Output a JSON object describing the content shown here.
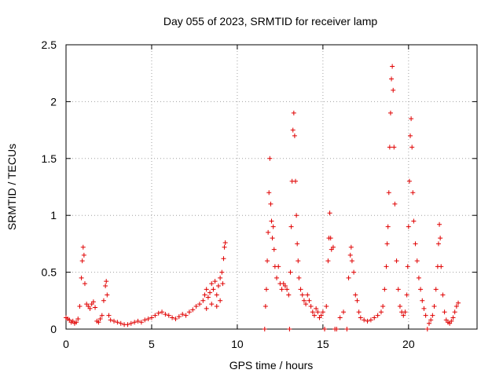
{
  "chart_data": {
    "type": "scatter",
    "title": "Day 055 of 2023, SRMTID for receiver lamp",
    "xlabel": "GPS time / hours",
    "ylabel": "SRMTID / TECUs",
    "xlim": [
      0,
      24
    ],
    "ylim": [
      0,
      2.5
    ],
    "xticks": [
      0,
      5,
      10,
      15,
      20
    ],
    "yticks": [
      0,
      0.5,
      1,
      1.5,
      2,
      2.5
    ],
    "xtick_labels": [
      "0",
      "5",
      "10",
      "15",
      "20"
    ],
    "ytick_labels": [
      "0",
      "0.5",
      "1",
      "1.5",
      "2",
      "2.5"
    ],
    "grid": true,
    "marker": "plus",
    "color": "#e00000",
    "series": [
      {
        "name": "SRMTID",
        "points": [
          [
            0.0,
            0.1
          ],
          [
            0.1,
            0.09
          ],
          [
            0.2,
            0.08
          ],
          [
            0.3,
            0.06
          ],
          [
            0.4,
            0.07
          ],
          [
            0.5,
            0.05
          ],
          [
            0.6,
            0.06
          ],
          [
            0.7,
            0.09
          ],
          [
            0.8,
            0.2
          ],
          [
            0.9,
            0.45
          ],
          [
            0.95,
            0.6
          ],
          [
            1.0,
            0.72
          ],
          [
            1.05,
            0.65
          ],
          [
            1.1,
            0.4
          ],
          [
            1.2,
            0.22
          ],
          [
            1.3,
            0.2
          ],
          [
            1.4,
            0.18
          ],
          [
            1.5,
            0.22
          ],
          [
            1.6,
            0.24
          ],
          [
            1.7,
            0.19
          ],
          [
            1.8,
            0.07
          ],
          [
            1.9,
            0.06
          ],
          [
            2.0,
            0.09
          ],
          [
            2.1,
            0.12
          ],
          [
            2.2,
            0.25
          ],
          [
            2.3,
            0.38
          ],
          [
            2.35,
            0.42
          ],
          [
            2.4,
            0.3
          ],
          [
            2.5,
            0.12
          ],
          [
            2.6,
            0.08
          ],
          [
            2.8,
            0.07
          ],
          [
            3.0,
            0.06
          ],
          [
            3.2,
            0.05
          ],
          [
            3.4,
            0.04
          ],
          [
            3.6,
            0.04
          ],
          [
            3.8,
            0.05
          ],
          [
            4.0,
            0.06
          ],
          [
            4.2,
            0.07
          ],
          [
            4.4,
            0.06
          ],
          [
            4.6,
            0.08
          ],
          [
            4.8,
            0.09
          ],
          [
            5.0,
            0.1
          ],
          [
            5.2,
            0.12
          ],
          [
            5.4,
            0.14
          ],
          [
            5.6,
            0.15
          ],
          [
            5.8,
            0.13
          ],
          [
            6.0,
            0.12
          ],
          [
            6.2,
            0.1
          ],
          [
            6.4,
            0.09
          ],
          [
            6.6,
            0.11
          ],
          [
            6.8,
            0.13
          ],
          [
            7.0,
            0.12
          ],
          [
            7.2,
            0.15
          ],
          [
            7.4,
            0.17
          ],
          [
            7.6,
            0.2
          ],
          [
            7.8,
            0.22
          ],
          [
            8.0,
            0.25
          ],
          [
            8.1,
            0.3
          ],
          [
            8.2,
            0.35
          ],
          [
            8.3,
            0.28
          ],
          [
            8.4,
            0.32
          ],
          [
            8.5,
            0.4
          ],
          [
            8.6,
            0.35
          ],
          [
            8.7,
            0.42
          ],
          [
            8.8,
            0.3
          ],
          [
            8.9,
            0.38
          ],
          [
            9.0,
            0.45
          ],
          [
            9.1,
            0.5
          ],
          [
            9.15,
            0.4
          ],
          [
            9.2,
            0.62
          ],
          [
            9.25,
            0.72
          ],
          [
            9.3,
            0.76
          ],
          [
            8.2,
            0.18
          ],
          [
            8.5,
            0.22
          ],
          [
            8.8,
            0.2
          ],
          [
            9.0,
            0.25
          ],
          [
            11.6,
            0.0
          ],
          [
            11.65,
            0.2
          ],
          [
            11.7,
            0.35
          ],
          [
            11.75,
            0.6
          ],
          [
            11.8,
            0.85
          ],
          [
            11.85,
            1.2
          ],
          [
            11.9,
            1.5
          ],
          [
            11.95,
            1.1
          ],
          [
            12.0,
            0.95
          ],
          [
            12.05,
            0.8
          ],
          [
            12.1,
            0.9
          ],
          [
            12.15,
            0.7
          ],
          [
            12.2,
            0.55
          ],
          [
            12.3,
            0.45
          ],
          [
            12.4,
            0.55
          ],
          [
            12.5,
            0.4
          ],
          [
            12.6,
            0.35
          ],
          [
            12.7,
            0.4
          ],
          [
            12.8,
            0.38
          ],
          [
            12.9,
            0.35
          ],
          [
            13.0,
            0.3
          ],
          [
            13.05,
            0.0
          ],
          [
            13.1,
            0.5
          ],
          [
            13.15,
            0.9
          ],
          [
            13.2,
            1.3
          ],
          [
            13.25,
            1.75
          ],
          [
            13.3,
            1.9
          ],
          [
            13.35,
            1.7
          ],
          [
            13.4,
            1.3
          ],
          [
            13.45,
            1.0
          ],
          [
            13.5,
            0.75
          ],
          [
            13.55,
            0.6
          ],
          [
            13.6,
            0.45
          ],
          [
            13.7,
            0.35
          ],
          [
            13.8,
            0.3
          ],
          [
            13.9,
            0.25
          ],
          [
            14.0,
            0.22
          ],
          [
            14.1,
            0.3
          ],
          [
            14.2,
            0.25
          ],
          [
            14.3,
            0.2
          ],
          [
            14.4,
            0.15
          ],
          [
            14.5,
            0.12
          ],
          [
            14.6,
            0.18
          ],
          [
            14.7,
            0.15
          ],
          [
            14.8,
            0.1
          ],
          [
            14.9,
            0.12
          ],
          [
            15.0,
            0.15
          ],
          [
            15.1,
            0.0
          ],
          [
            15.2,
            0.2
          ],
          [
            15.3,
            0.6
          ],
          [
            15.35,
            0.8
          ],
          [
            15.4,
            1.02
          ],
          [
            15.45,
            0.8
          ],
          [
            15.5,
            0.7
          ],
          [
            15.6,
            0.72
          ],
          [
            15.7,
            0.0
          ],
          [
            15.8,
            0.0
          ],
          [
            16.0,
            0.1
          ],
          [
            16.2,
            0.15
          ],
          [
            16.4,
            0.0
          ],
          [
            16.5,
            0.45
          ],
          [
            16.6,
            0.65
          ],
          [
            16.65,
            0.72
          ],
          [
            16.7,
            0.6
          ],
          [
            16.8,
            0.5
          ],
          [
            16.9,
            0.3
          ],
          [
            17.0,
            0.25
          ],
          [
            17.1,
            0.15
          ],
          [
            17.2,
            0.1
          ],
          [
            17.4,
            0.08
          ],
          [
            17.6,
            0.07
          ],
          [
            17.8,
            0.08
          ],
          [
            18.0,
            0.1
          ],
          [
            18.2,
            0.12
          ],
          [
            18.4,
            0.15
          ],
          [
            18.5,
            0.2
          ],
          [
            18.6,
            0.35
          ],
          [
            18.7,
            0.55
          ],
          [
            18.75,
            0.75
          ],
          [
            18.8,
            0.9
          ],
          [
            18.85,
            1.2
          ],
          [
            18.9,
            1.6
          ],
          [
            18.95,
            1.9
          ],
          [
            19.0,
            2.2
          ],
          [
            19.05,
            2.31
          ],
          [
            19.1,
            2.1
          ],
          [
            19.15,
            1.6
          ],
          [
            19.2,
            1.1
          ],
          [
            19.3,
            0.6
          ],
          [
            19.4,
            0.35
          ],
          [
            19.5,
            0.2
          ],
          [
            19.6,
            0.15
          ],
          [
            19.7,
            0.12
          ],
          [
            19.8,
            0.15
          ],
          [
            19.9,
            0.3
          ],
          [
            19.95,
            0.55
          ],
          [
            20.0,
            0.9
          ],
          [
            20.05,
            1.3
          ],
          [
            20.1,
            1.7
          ],
          [
            20.15,
            1.85
          ],
          [
            20.2,
            1.6
          ],
          [
            20.25,
            1.2
          ],
          [
            20.3,
            0.95
          ],
          [
            20.4,
            0.75
          ],
          [
            20.5,
            0.6
          ],
          [
            20.6,
            0.45
          ],
          [
            20.7,
            0.35
          ],
          [
            20.8,
            0.25
          ],
          [
            20.9,
            0.18
          ],
          [
            21.0,
            0.12
          ],
          [
            21.1,
            0.0
          ],
          [
            21.2,
            0.05
          ],
          [
            21.3,
            0.08
          ],
          [
            21.4,
            0.12
          ],
          [
            21.5,
            0.2
          ],
          [
            21.6,
            0.35
          ],
          [
            21.7,
            0.55
          ],
          [
            21.75,
            0.75
          ],
          [
            21.8,
            0.92
          ],
          [
            21.85,
            0.8
          ],
          [
            21.9,
            0.55
          ],
          [
            22.0,
            0.3
          ],
          [
            22.1,
            0.15
          ],
          [
            22.2,
            0.08
          ],
          [
            22.3,
            0.06
          ],
          [
            22.4,
            0.05
          ],
          [
            22.5,
            0.07
          ],
          [
            22.6,
            0.1
          ],
          [
            22.7,
            0.15
          ],
          [
            22.8,
            0.2
          ],
          [
            22.9,
            0.23
          ]
        ]
      }
    ]
  }
}
